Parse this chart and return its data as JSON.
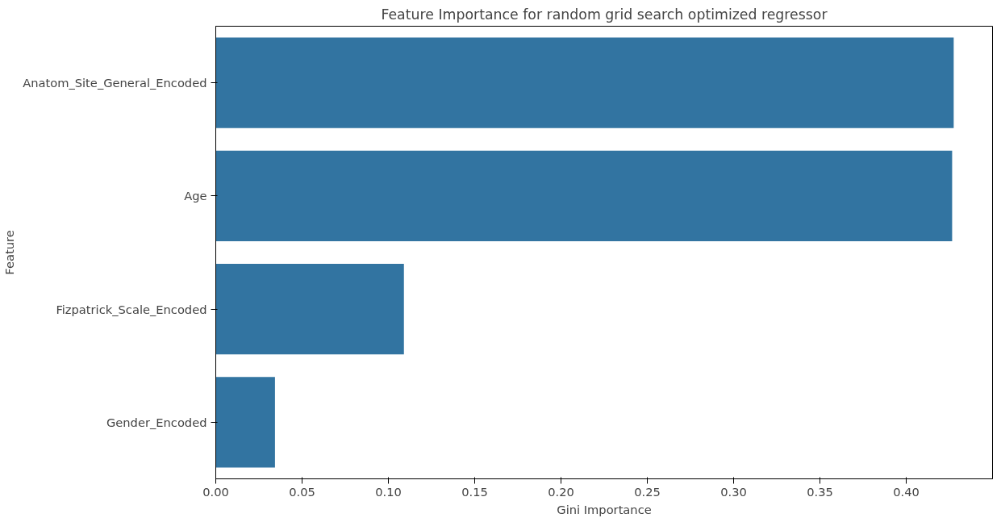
{
  "chart_data": {
    "type": "bar",
    "orientation": "horizontal",
    "title": "Feature Importance for random grid search optimized regressor",
    "xlabel": "Gini Importance",
    "ylabel": "Feature",
    "categories": [
      "Anatom_Site_General_Encoded",
      "Age",
      "Fizpatrick_Scale_Encoded",
      "Gender_Encoded"
    ],
    "values": [
      0.4275,
      0.4266,
      0.109,
      0.0343
    ],
    "color": "#3274a1",
    "xlim": [
      0,
      0.45
    ],
    "xticks": [
      {
        "value": 0,
        "label": "0.00"
      },
      {
        "value": 0.05,
        "label": "0.05"
      },
      {
        "value": 0.1,
        "label": "0.10"
      },
      {
        "value": 0.15,
        "label": "0.15"
      },
      {
        "value": 0.2,
        "label": "0.20"
      },
      {
        "value": 0.25,
        "label": "0.25"
      },
      {
        "value": 0.3,
        "label": "0.30"
      },
      {
        "value": 0.35,
        "label": "0.35"
      },
      {
        "value": 0.4,
        "label": "0.40"
      }
    ],
    "grid": false
  }
}
